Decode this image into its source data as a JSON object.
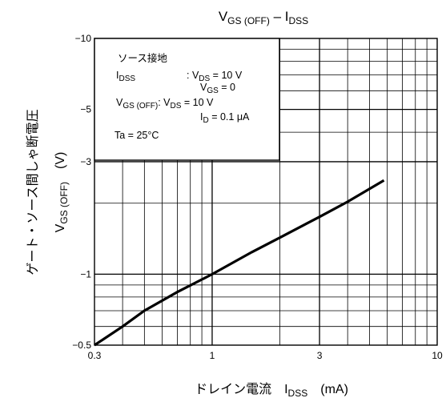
{
  "chart_data": {
    "type": "line",
    "title": "VGS (OFF) – IDSS",
    "xlabel": "ドレイン電流 IDSS (mA)",
    "ylabel": "ゲート・ソース間しゃ断電圧 VGS (OFF) (V)",
    "xscale": "log",
    "yscale": "log",
    "xlim": [
      0.3,
      10
    ],
    "ylim": [
      -0.5,
      -10
    ],
    "grid": true,
    "x_ticks": [
      "0.3",
      "1",
      "3",
      "10"
    ],
    "y_ticks": [
      "−10",
      "−5",
      "−3",
      "−1",
      "−0.5"
    ],
    "series": [
      {
        "x": [
          0.3,
          0.4,
          0.5,
          0.7,
          1.0,
          1.5,
          2.0,
          3.0,
          4.0,
          5.8
        ],
        "y": [
          -0.5,
          -0.6,
          -0.7,
          -0.84,
          -1.0,
          -1.24,
          -1.43,
          -1.75,
          -2.03,
          -2.5
        ]
      }
    ],
    "legend_box": {
      "lines": [
        {
          "label": "ソース接地",
          "sub": "",
          "value": ""
        },
        {
          "label": "I",
          "sub": "DSS",
          "value": ": V",
          "value_sub": "DS",
          "value_rest": " = 10 V"
        },
        {
          "label": "",
          "sub": "",
          "value": "V",
          "value_sub": "GS",
          "value_rest": " = 0"
        },
        {
          "label": "V",
          "sub": "GS (OFF)",
          "value": ": V",
          "value_sub": "DS",
          "value_rest": " = 10 V"
        },
        {
          "label": "",
          "sub": "",
          "value": "I",
          "value_sub": "D",
          "value_rest": " = 0.1 μA"
        },
        {
          "label": "Ta = 25°C",
          "sub": "",
          "value": ""
        }
      ]
    },
    "colors": {
      "line": "#000000",
      "grid": "#000000",
      "background": "#ffffff"
    }
  }
}
